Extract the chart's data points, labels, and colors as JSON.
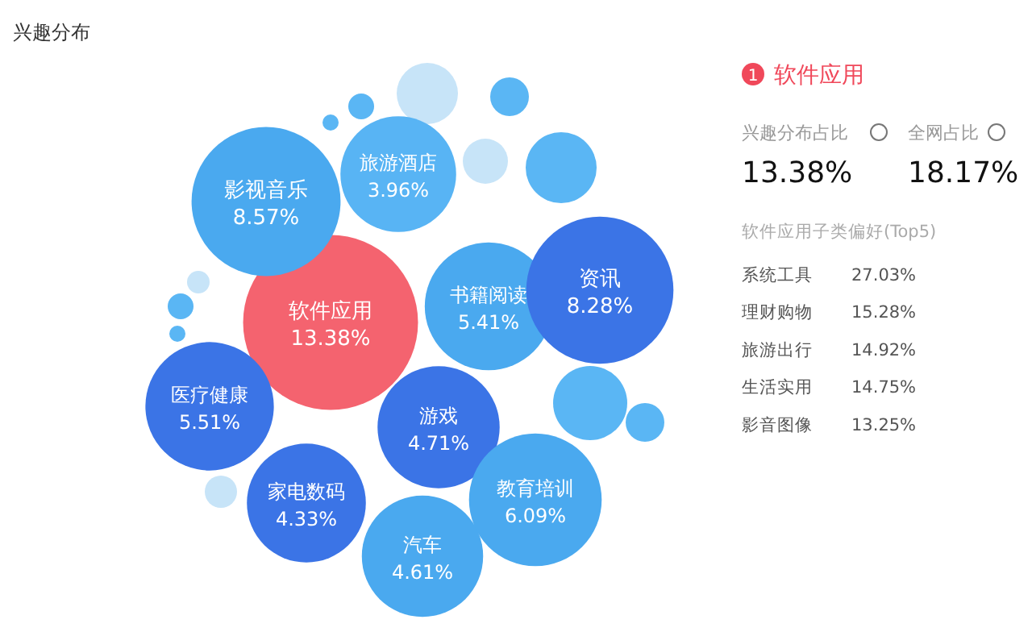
{
  "chart_data": [
    {
      "type": "other",
      "title": "兴趣分布",
      "categories": [
        "软件应用",
        "影视音乐",
        "旅游酒店",
        "书籍阅读",
        "资讯",
        "医疗健康",
        "游戏",
        "家电数码",
        "汽车",
        "教育培训"
      ],
      "values": [
        13.38,
        8.57,
        3.96,
        5.41,
        8.28,
        5.51,
        4.71,
        4.33,
        4.61,
        6.09
      ],
      "value_labels": [
        "13.38%",
        "8.57%",
        "3.96%",
        "5.41%",
        "8.28%",
        "5.51%",
        "4.71%",
        "4.33%",
        "4.61%",
        "6.09%"
      ],
      "colors": [
        "#f4636f",
        "#4aa9ef",
        "#58b4f4",
        "#4aa9ef",
        "#3b74e6",
        "#3b74e6",
        "#3b74e6",
        "#3b74e6",
        "#4aa9ef",
        "#4aa9ef"
      ]
    },
    {
      "type": "other",
      "title": "软件应用",
      "annotations": [
        "1",
        "兴趣分布占比",
        "全网占比",
        "13.38%",
        "18.17%",
        "软件应用子类偏好(Top5)",
        "系统工具",
        "27.03%",
        "理财购物",
        "15.28%",
        "旅游出行",
        "14.92%",
        "生活实用",
        "14.75%",
        "影音图像",
        "13.25%"
      ]
    }
  ]
}
